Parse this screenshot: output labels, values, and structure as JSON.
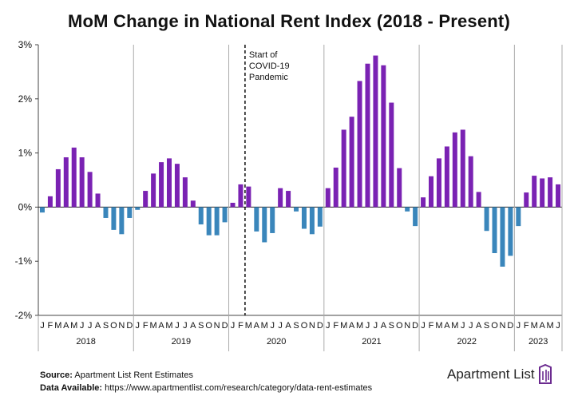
{
  "header": {
    "title": "MoM Change in National Rent Index (2018 - Present)"
  },
  "chart_data": {
    "type": "bar",
    "title": "MoM Change in National Rent Index (2018 - Present)",
    "xlabel": "",
    "ylabel": "",
    "ylim": [
      -2,
      3
    ],
    "yticks": [
      "3%",
      "2%",
      "1%",
      "0%",
      "-1%",
      "-2%"
    ],
    "ytick_values": [
      3,
      2,
      1,
      0,
      -1,
      -2
    ],
    "grid": "vertical separators between years",
    "colors": {
      "positive": "#7a22b3",
      "negative": "#3a86bb"
    },
    "years": [
      "2018",
      "2019",
      "2020",
      "2021",
      "2022",
      "2023"
    ],
    "month_labels": [
      "J",
      "F",
      "M",
      "A",
      "M",
      "J",
      "J",
      "A",
      "S",
      "O",
      "N",
      "D"
    ],
    "values": [
      -0.1,
      0.2,
      0.7,
      0.92,
      1.1,
      0.92,
      0.65,
      0.25,
      -0.2,
      -0.42,
      -0.5,
      -0.2,
      -0.05,
      0.3,
      0.62,
      0.83,
      0.9,
      0.8,
      0.55,
      0.12,
      -0.32,
      -0.52,
      -0.52,
      -0.28,
      0.08,
      0.42,
      0.38,
      -0.45,
      -0.65,
      -0.48,
      0.35,
      0.3,
      -0.08,
      -0.4,
      -0.5,
      -0.36,
      0.35,
      0.73,
      1.43,
      1.67,
      2.33,
      2.65,
      2.8,
      2.62,
      1.93,
      0.72,
      -0.08,
      -0.35,
      0.18,
      0.57,
      0.9,
      1.12,
      1.38,
      1.43,
      0.94,
      0.28,
      -0.44,
      -0.85,
      -1.1,
      -0.9,
      -0.35,
      0.27,
      0.58,
      0.53,
      0.55,
      0.42
    ],
    "annotation": {
      "text_lines": [
        "Start of",
        "COVID-19",
        "Pandemic"
      ],
      "at_month_index": 26
    }
  },
  "footer": {
    "source_label": "Source:",
    "source_text": "Apartment List Rent Estimates",
    "data_label": "Data Available:",
    "data_text": "https://www.apartmentlist.com/research/category/data-rent-estimates"
  },
  "brand": {
    "logo_text": "Apartment List",
    "color": "#6b2a8f"
  }
}
